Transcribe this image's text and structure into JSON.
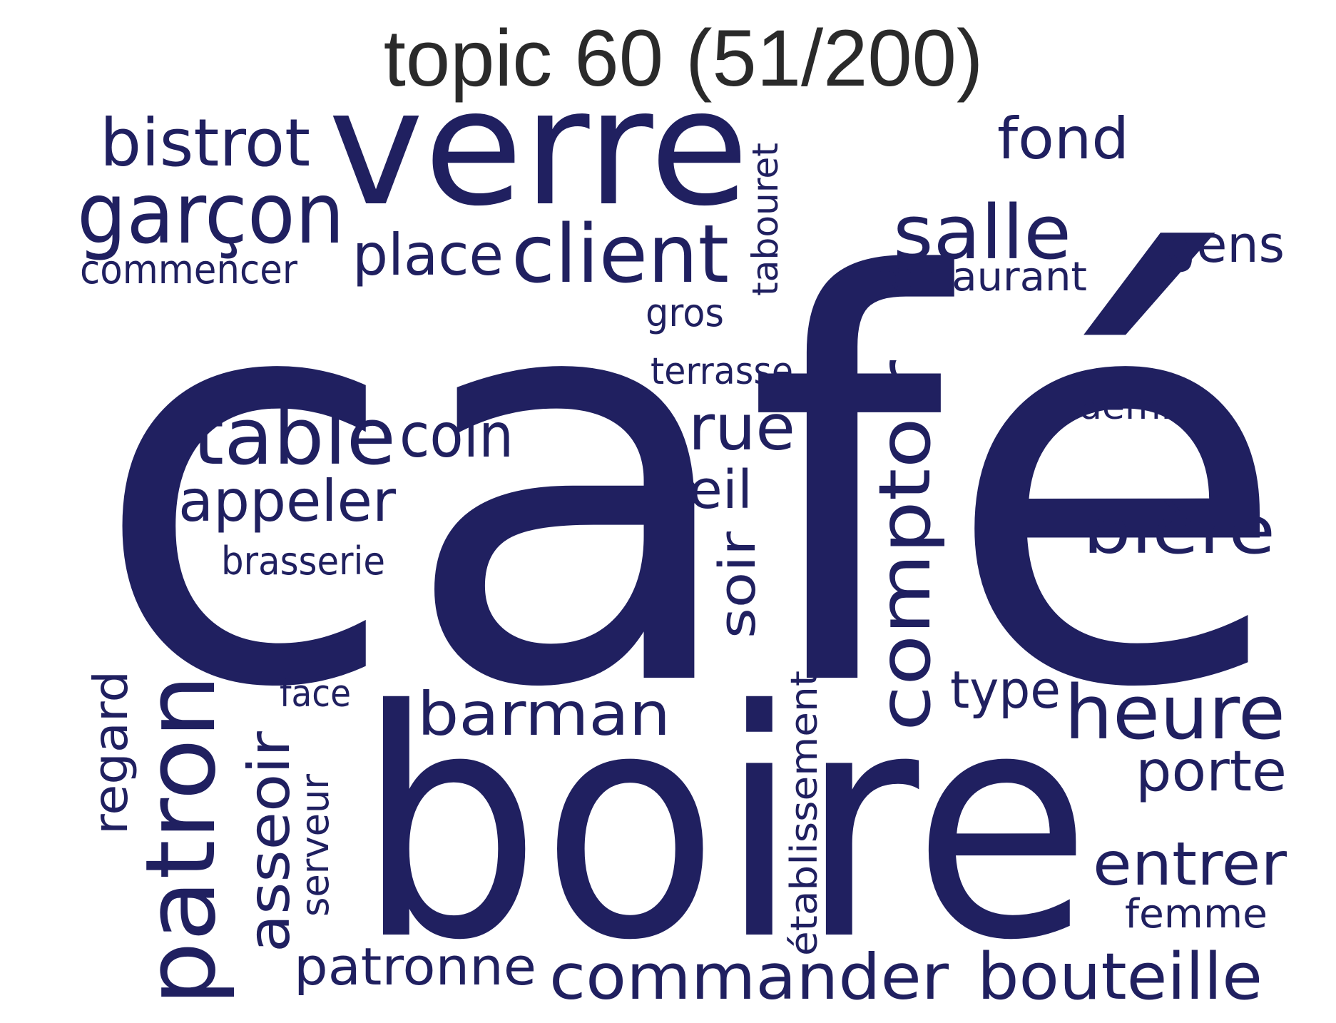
{
  "title": "topic 60 (51/200)",
  "colors": {
    "words": "#202060",
    "title": "#2a2a2a",
    "background": "#ffffff"
  },
  "words": [
    "café",
    "boire",
    "verre",
    "comptoir",
    "patron",
    "table",
    "client",
    "salle",
    "heure",
    "bière",
    "garçon",
    "bistrot",
    "barman",
    "commander",
    "bouteille",
    "entrer",
    "porte",
    "appeler",
    "asseoir",
    "rue",
    "place",
    "coin",
    "fond",
    "gens",
    "patronne",
    "soir",
    "œil",
    "regard",
    "type",
    "tabouret",
    "établissement",
    "terrasse",
    "restaurant",
    "commencer",
    "serveur",
    "brasserie",
    "femme",
    "face",
    "gros",
    "demi"
  ]
}
